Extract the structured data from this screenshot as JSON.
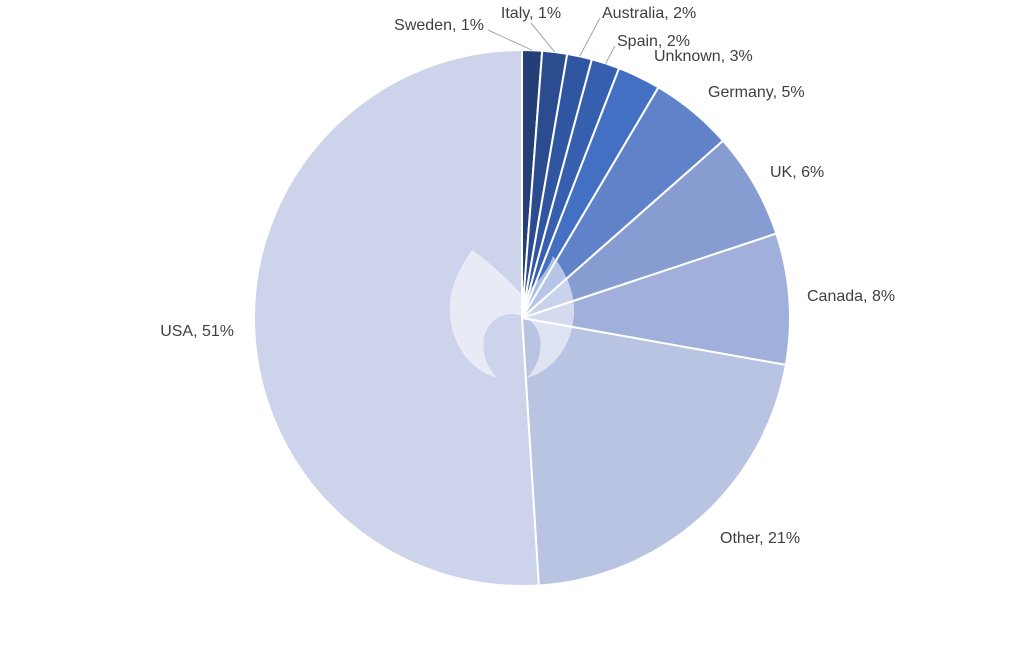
{
  "chart_data": {
    "type": "pie",
    "title": "",
    "slices": [
      {
        "label": "Sweden, 1%",
        "name": "Sweden",
        "value": 1.2,
        "color": "#243f78"
      },
      {
        "label": "Italy, 1%",
        "name": "Italy",
        "value": 1.5,
        "color": "#2b4d8f"
      },
      {
        "label": "Australia, 2%",
        "name": "Australia",
        "value": 1.5,
        "color": "#3056a1"
      },
      {
        "label": "Spain, 2%",
        "name": "Spain",
        "value": 1.7,
        "color": "#365fb0"
      },
      {
        "label": "Unknown, 3%",
        "name": "Unknown",
        "value": 2.6,
        "color": "#4470c4"
      },
      {
        "label": "Germany, 5%",
        "name": "Germany",
        "value": 5.0,
        "color": "#6082c8"
      },
      {
        "label": "UK, 6%",
        "name": "UK",
        "value": 6.4,
        "color": "#879dd2"
      },
      {
        "label": "Canada, 8%",
        "name": "Canada",
        "value": 7.9,
        "color": "#a1b0da"
      },
      {
        "label": "Other, 21%",
        "name": "Other",
        "value": 21.2,
        "color": "#b9c4e3"
      },
      {
        "label": "USA, 51%",
        "name": "USA",
        "value": 51.0,
        "color": "#cdd3ea"
      }
    ],
    "start_angle_deg": 0,
    "direction": "clockwise",
    "slice_border_color": "#ffffff",
    "legend": "none"
  },
  "watermark": {
    "icon": "malwarebytes-logo-icon",
    "color": "#ffffff"
  }
}
